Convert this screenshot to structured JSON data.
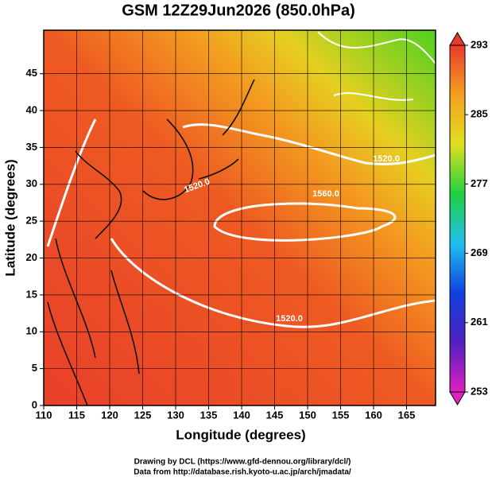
{
  "chart_data": {
    "type": "map",
    "title": "GSM 12Z29Jun2026 (850.0hPa)",
    "x_label": "Longitude (degrees)",
    "y_label": "Latitude  (degrees)",
    "xlim": [
      110,
      169.4
    ],
    "xticks": [
      110,
      115,
      120,
      125,
      130,
      135,
      140,
      145,
      150,
      155,
      160,
      165
    ],
    "ylim": [
      0,
      50.9
    ],
    "yticks": [
      0,
      5,
      10,
      15,
      20,
      25,
      30,
      35,
      40,
      45
    ],
    "grid": true,
    "colorbar": {
      "lim": [
        253,
        293
      ],
      "ticks": [
        253,
        261,
        269,
        277,
        285,
        293
      ],
      "colors": [
        "#e020c0",
        "#5020c0",
        "#1040e0",
        "#20c0f0",
        "#20d040",
        "#e0e020",
        "#f5a020",
        "#e83a2a"
      ]
    },
    "annotations": [
      "1560.0",
      "1520.0",
      "1520.0",
      "1520.0"
    ]
  },
  "credits": [
    "Drawing by DCL (https://www.gfd-dennou.org/library/dcl/)",
    "Data from http://database.rish.kyoto-u.ac.jp/arch/jmadata/"
  ]
}
